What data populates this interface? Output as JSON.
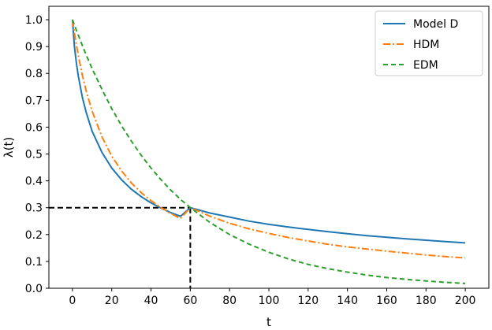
{
  "chart_data": {
    "type": "line",
    "xlabel": "t",
    "ylabel": "λ(t)",
    "xlim": [
      -12,
      212
    ],
    "ylim": [
      0,
      1.05
    ],
    "xticks": [
      0,
      20,
      40,
      60,
      80,
      100,
      120,
      140,
      160,
      180,
      200
    ],
    "yticks": [
      0.0,
      0.1,
      0.2,
      0.3,
      0.4,
      0.5,
      0.6,
      0.7,
      0.8,
      0.9,
      1.0
    ],
    "xtick_labels": [
      "0",
      "20",
      "40",
      "60",
      "80",
      "100",
      "120",
      "140",
      "160",
      "180",
      "200"
    ],
    "ytick_labels": [
      "0.0",
      "0.1",
      "0.2",
      "0.3",
      "0.4",
      "0.5",
      "0.6",
      "0.7",
      "0.8",
      "0.9",
      "1.0"
    ],
    "grid": false,
    "legend_position": "top-right",
    "x": [
      0,
      1,
      2,
      3,
      5,
      7,
      10,
      15,
      20,
      25,
      30,
      35,
      40,
      45,
      50,
      55,
      60,
      70,
      80,
      90,
      100,
      110,
      120,
      130,
      140,
      150,
      160,
      170,
      180,
      190,
      200
    ],
    "series": [
      {
        "name": "Model D",
        "color": "#1f77b4",
        "style": "solid",
        "values": [
          1.0,
          0.9,
          0.838,
          0.789,
          0.713,
          0.655,
          0.585,
          0.506,
          0.448,
          0.404,
          0.369,
          0.341,
          0.318,
          0.299,
          0.282,
          0.268,
          0.3,
          0.28,
          0.265,
          0.25,
          0.238,
          0.228,
          0.219,
          0.211,
          0.203,
          0.196,
          0.19,
          0.184,
          0.179,
          0.174,
          0.169
        ]
      },
      {
        "name": "HDM",
        "color": "#ff7f0e",
        "style": "dashdot",
        "values": [
          1.0,
          0.951,
          0.906,
          0.866,
          0.795,
          0.735,
          0.66,
          0.564,
          0.492,
          0.437,
          0.392,
          0.356,
          0.326,
          0.301,
          0.279,
          0.26,
          0.3,
          0.268,
          0.242,
          0.221,
          0.204,
          0.189,
          0.176,
          0.164,
          0.154,
          0.146,
          0.138,
          0.131,
          0.124,
          0.118,
          0.113
        ]
      },
      {
        "name": "EDM",
        "color": "#2ca02c",
        "style": "dashed",
        "values": [
          1.0,
          0.98,
          0.96,
          0.942,
          0.905,
          0.869,
          0.818,
          0.741,
          0.669,
          0.605,
          0.548,
          0.495,
          0.448,
          0.405,
          0.366,
          0.331,
          0.3,
          0.245,
          0.2,
          0.164,
          0.134,
          0.109,
          0.089,
          0.073,
          0.06,
          0.049,
          0.04,
          0.033,
          0.027,
          0.022,
          0.018
        ]
      }
    ],
    "reference_point": {
      "x": 60,
      "y": 0.3
    }
  }
}
